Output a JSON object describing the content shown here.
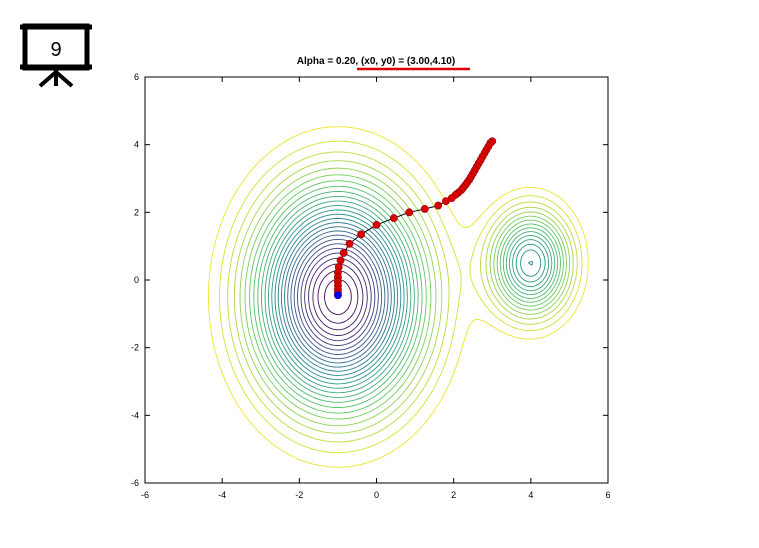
{
  "slide": {
    "number": "9"
  },
  "chart_data": {
    "type": "contour",
    "title": "Alpha = 0.20, (x0, y0) = (3.00,4.10)",
    "xlabel": "",
    "ylabel": "",
    "xlim": [
      -6,
      6
    ],
    "ylim": [
      -6,
      6
    ],
    "x_ticks": [
      "-6",
      "-4",
      "-2",
      "0",
      "2",
      "4",
      "6"
    ],
    "y_ticks": [
      "-6",
      "-4",
      "-2",
      "0",
      "2",
      "4",
      "6"
    ],
    "grid": false,
    "colormap": "viridis",
    "underline_color": "#dd0000",
    "path_color": "#dd0000",
    "end_point_color": "#0000ee",
    "path": {
      "x": [
        3.0,
        2.95,
        2.9,
        2.85,
        2.8,
        2.75,
        2.7,
        2.65,
        2.6,
        2.55,
        2.5,
        2.45,
        2.4,
        2.35,
        2.3,
        2.25,
        2.2,
        2.12,
        2.05,
        1.95,
        1.8,
        1.6,
        1.25,
        0.85,
        0.45,
        0.0,
        -0.4,
        -0.7,
        -0.85,
        -0.93,
        -0.98,
        -1.0,
        -1.0,
        -1.0,
        -1.0,
        -1.0,
        -1.0,
        -1.0
      ],
      "y": [
        4.1,
        4.05,
        3.95,
        3.85,
        3.75,
        3.65,
        3.55,
        3.45,
        3.35,
        3.25,
        3.15,
        3.05,
        2.96,
        2.88,
        2.8,
        2.73,
        2.66,
        2.58,
        2.52,
        2.42,
        2.33,
        2.2,
        2.1,
        2.0,
        1.83,
        1.63,
        1.35,
        1.07,
        0.8,
        0.58,
        0.38,
        0.22,
        0.08,
        -0.05,
        -0.17,
        -0.28,
        -0.38,
        -0.45
      ]
    },
    "end_point": {
      "x": -1.0,
      "y": -0.45
    }
  }
}
